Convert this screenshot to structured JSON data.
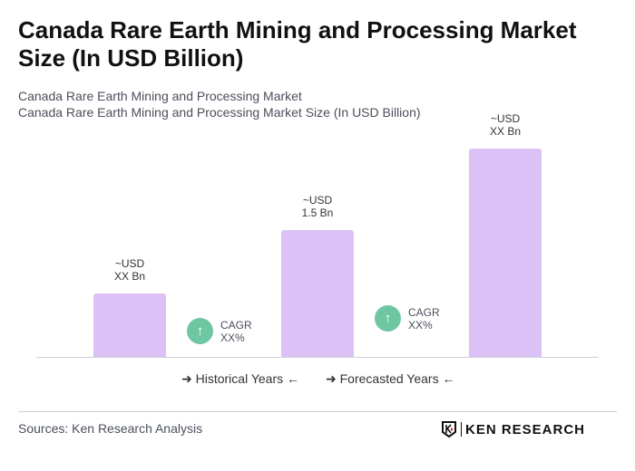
{
  "title": "Canada Rare Earth Mining and Processing Market Size (In USD Billion)",
  "subtitle1": "Canada Rare Earth Mining and Processing Market",
  "subtitle2": "Canada Rare Earth Mining and Processing Market Size (In USD Billion)",
  "chart_data": {
    "type": "bar",
    "categories": [
      "",
      "",
      ""
    ],
    "values": [
      0.75,
      1.5,
      2.46
    ],
    "data_labels": [
      [
        "~USD",
        "XX Bn"
      ],
      [
        "~USD",
        "1.5 Bn"
      ],
      [
        "~USD",
        "XX Bn"
      ]
    ],
    "bar_color": "#dcc1f6",
    "cagr": [
      {
        "label": "CAGR",
        "value": "XX%"
      },
      {
        "label": "CAGR",
        "value": "XX%"
      }
    ],
    "cagr_color": "#6fc6a2",
    "legend": [
      "Historical Years",
      "Forecasted Years"
    ],
    "grid": false
  },
  "sources": "Sources: Ken Research Analysis",
  "logo": "KEN RESEARCH"
}
